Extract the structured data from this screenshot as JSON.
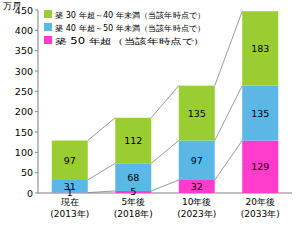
{
  "chart_data": {
    "type": "bar",
    "stacked": true,
    "data_labels": true,
    "grid": false,
    "legend": "upper left",
    "ylabel": "万戸",
    "categories": [
      "現在\n(2013年)",
      "5年後\n(2018年)",
      "10年後\n(2023年)",
      "20年後\n(2033年)"
    ],
    "series": [
      {
        "name": "築 50 年超（当該年時点で）",
        "color": "#ff3ccc",
        "values": [
          1,
          5,
          32,
          129
        ]
      },
      {
        "name": "築 40 年超～50 年未満（当該年時点で）",
        "color": "#5bb8e6",
        "values": [
          31,
          68,
          97,
          135
        ]
      },
      {
        "name": "築 30 年超～40 年未満（当該年時点で）",
        "color": "#9acd32",
        "values": [
          97,
          112,
          135,
          183
        ]
      }
    ],
    "ylim": [
      0,
      450
    ],
    "yticks": [
      0,
      50,
      100,
      150,
      200,
      250,
      300,
      350,
      400,
      450
    ]
  }
}
